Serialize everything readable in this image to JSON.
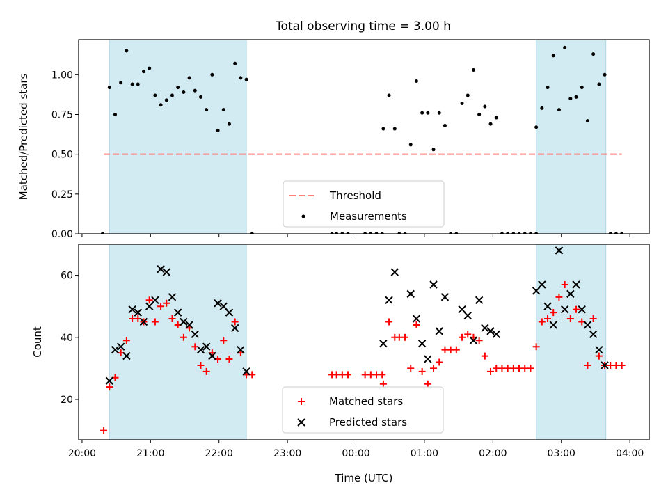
{
  "figure": {
    "title": "Total observing time = 3.00 h"
  },
  "colors": {
    "shade": "#add8e6",
    "threshold": "#ff7f7f",
    "matched": "#ff0000",
    "predicted": "#000000",
    "measurement": "#000000"
  },
  "chart_data": [
    {
      "type": "scatter",
      "title": "Total observing time = 3.00 h",
      "xlabel": "",
      "ylabel": "Matched/Predicted stars",
      "xlim": [
        "19:57",
        "04:17"
      ],
      "ylim": [
        0.0,
        1.22
      ],
      "x_ticks": [
        "20:00",
        "21:00",
        "22:00",
        "23:00",
        "00:00",
        "01:00",
        "02:00",
        "03:00",
        "04:00"
      ],
      "y_ticks": [
        "0.00",
        "0.25",
        "0.50",
        "0.75",
        "1.00"
      ],
      "shaded_intervals": [
        [
          "20:24",
          "22:24"
        ],
        [
          "02:38",
          "03:39"
        ]
      ],
      "threshold": {
        "name": "Threshold",
        "y": 0.5,
        "x_range": [
          "20:19",
          "03:53"
        ],
        "style": "dashed"
      },
      "legend": {
        "position": "lower center",
        "entries": [
          "Threshold",
          "Measurements"
        ]
      },
      "series": [
        {
          "name": "Measurements",
          "points": [
            [
              "20:18",
              0.0
            ],
            [
              "20:24",
              0.92
            ],
            [
              "20:29",
              0.75
            ],
            [
              "20:34",
              0.95
            ],
            [
              "20:39",
              1.15
            ],
            [
              "20:44",
              0.94
            ],
            [
              "20:49",
              0.94
            ],
            [
              "20:54",
              1.02
            ],
            [
              "20:59",
              1.04
            ],
            [
              "21:04",
              0.87
            ],
            [
              "21:09",
              0.81
            ],
            [
              "21:14",
              0.84
            ],
            [
              "21:19",
              0.87
            ],
            [
              "21:24",
              0.92
            ],
            [
              "21:29",
              0.89
            ],
            [
              "21:34",
              0.98
            ],
            [
              "21:39",
              0.9
            ],
            [
              "21:44",
              0.86
            ],
            [
              "21:49",
              0.78
            ],
            [
              "21:54",
              1.0
            ],
            [
              "21:59",
              0.65
            ],
            [
              "22:04",
              0.78
            ],
            [
              "22:09",
              0.69
            ],
            [
              "22:14",
              1.07
            ],
            [
              "22:19",
              0.98
            ],
            [
              "22:24",
              0.97
            ],
            [
              "22:29",
              0.0
            ],
            [
              "23:39",
              0.0
            ],
            [
              "23:43",
              0.0
            ],
            [
              "23:48",
              0.0
            ],
            [
              "23:53",
              0.0
            ],
            [
              "00:08",
              0.0
            ],
            [
              "00:13",
              0.0
            ],
            [
              "00:18",
              0.0
            ],
            [
              "00:23",
              0.0
            ],
            [
              "00:24",
              0.66
            ],
            [
              "00:29",
              0.87
            ],
            [
              "00:34",
              0.66
            ],
            [
              "00:38",
              0.0
            ],
            [
              "00:43",
              0.0
            ],
            [
              "00:48",
              0.56
            ],
            [
              "00:53",
              0.96
            ],
            [
              "00:58",
              0.76
            ],
            [
              "01:03",
              0.76
            ],
            [
              "01:08",
              0.53
            ],
            [
              "01:13",
              0.76
            ],
            [
              "01:18",
              0.68
            ],
            [
              "01:23",
              0.0
            ],
            [
              "01:28",
              0.0
            ],
            [
              "01:33",
              0.82
            ],
            [
              "01:38",
              0.87
            ],
            [
              "01:43",
              1.03
            ],
            [
              "01:48",
              0.75
            ],
            [
              "01:53",
              0.8
            ],
            [
              "01:58",
              0.69
            ],
            [
              "02:03",
              0.73
            ],
            [
              "02:08",
              0.0
            ],
            [
              "02:13",
              0.0
            ],
            [
              "02:18",
              0.0
            ],
            [
              "02:23",
              0.0
            ],
            [
              "02:28",
              0.0
            ],
            [
              "02:33",
              0.0
            ],
            [
              "02:38",
              0.0
            ],
            [
              "02:38",
              0.67
            ],
            [
              "02:43",
              0.79
            ],
            [
              "02:48",
              0.92
            ],
            [
              "02:53",
              1.12
            ],
            [
              "02:58",
              0.78
            ],
            [
              "03:03",
              1.17
            ],
            [
              "03:08",
              0.85
            ],
            [
              "03:13",
              0.86
            ],
            [
              "03:18",
              0.92
            ],
            [
              "03:23",
              0.71
            ],
            [
              "03:28",
              1.13
            ],
            [
              "03:33",
              0.94
            ],
            [
              "03:38",
              1.0
            ],
            [
              "03:43",
              0.0
            ],
            [
              "03:48",
              0.0
            ],
            [
              "03:53",
              0.0
            ]
          ]
        }
      ]
    },
    {
      "type": "scatter",
      "title": "",
      "xlabel": "Time (UTC)",
      "ylabel": "Count",
      "xlim": [
        "19:57",
        "04:17"
      ],
      "ylim": [
        7,
        70
      ],
      "x_ticks": [
        "20:00",
        "21:00",
        "22:00",
        "23:00",
        "00:00",
        "01:00",
        "02:00",
        "03:00",
        "04:00"
      ],
      "y_ticks": [
        "20",
        "40",
        "60"
      ],
      "shaded_intervals": [
        [
          "20:24",
          "22:24"
        ],
        [
          "02:38",
          "03:39"
        ]
      ],
      "legend": {
        "position": "lower center",
        "entries": [
          "Matched stars",
          "Predicted stars"
        ]
      },
      "series": [
        {
          "name": "Matched stars",
          "marker": "+",
          "points": [
            [
              "20:19",
              10
            ],
            [
              "20:24",
              24
            ],
            [
              "20:29",
              27
            ],
            [
              "20:34",
              35
            ],
            [
              "20:39",
              39
            ],
            [
              "20:44",
              46
            ],
            [
              "20:49",
              46
            ],
            [
              "20:54",
              45
            ],
            [
              "20:59",
              52
            ],
            [
              "21:04",
              45
            ],
            [
              "21:09",
              50
            ],
            [
              "21:14",
              51
            ],
            [
              "21:19",
              46
            ],
            [
              "21:24",
              44
            ],
            [
              "21:29",
              40
            ],
            [
              "21:34",
              43
            ],
            [
              "21:39",
              37
            ],
            [
              "21:44",
              31
            ],
            [
              "21:49",
              29
            ],
            [
              "21:54",
              35
            ],
            [
              "21:59",
              33
            ],
            [
              "22:04",
              39
            ],
            [
              "22:09",
              33
            ],
            [
              "22:14",
              45
            ],
            [
              "22:19",
              35
            ],
            [
              "22:24",
              28
            ],
            [
              "22:29",
              28
            ],
            [
              "23:39",
              28
            ],
            [
              "23:43",
              28
            ],
            [
              "23:48",
              28
            ],
            [
              "23:53",
              28
            ],
            [
              "00:08",
              28
            ],
            [
              "00:13",
              28
            ],
            [
              "00:18",
              28
            ],
            [
              "00:23",
              28
            ],
            [
              "00:24",
              25
            ],
            [
              "00:29",
              45
            ],
            [
              "00:34",
              40
            ],
            [
              "00:38",
              40
            ],
            [
              "00:43",
              40
            ],
            [
              "00:48",
              30
            ],
            [
              "00:53",
              44
            ],
            [
              "00:58",
              29
            ],
            [
              "01:03",
              25
            ],
            [
              "01:08",
              30
            ],
            [
              "01:13",
              32
            ],
            [
              "01:18",
              36
            ],
            [
              "01:23",
              36
            ],
            [
              "01:28",
              36
            ],
            [
              "01:33",
              40
            ],
            [
              "01:38",
              41
            ],
            [
              "01:43",
              40
            ],
            [
              "01:48",
              39
            ],
            [
              "01:53",
              34
            ],
            [
              "01:58",
              29
            ],
            [
              "02:03",
              30
            ],
            [
              "02:08",
              30
            ],
            [
              "02:13",
              30
            ],
            [
              "02:18",
              30
            ],
            [
              "02:23",
              30
            ],
            [
              "02:28",
              30
            ],
            [
              "02:33",
              30
            ],
            [
              "02:38",
              37
            ],
            [
              "02:43",
              45
            ],
            [
              "02:48",
              46
            ],
            [
              "02:53",
              48
            ],
            [
              "02:58",
              53
            ],
            [
              "03:03",
              57
            ],
            [
              "03:08",
              46
            ],
            [
              "03:13",
              49
            ],
            [
              "03:18",
              45
            ],
            [
              "03:23",
              31
            ],
            [
              "03:28",
              46
            ],
            [
              "03:33",
              34
            ],
            [
              "03:38",
              31
            ],
            [
              "03:43",
              31
            ],
            [
              "03:48",
              31
            ],
            [
              "03:53",
              31
            ]
          ]
        },
        {
          "name": "Predicted stars",
          "marker": "x",
          "points": [
            [
              "20:24",
              26
            ],
            [
              "20:29",
              36
            ],
            [
              "20:34",
              37
            ],
            [
              "20:39",
              34
            ],
            [
              "20:44",
              49
            ],
            [
              "20:49",
              48
            ],
            [
              "20:54",
              45
            ],
            [
              "20:59",
              50
            ],
            [
              "21:04",
              52
            ],
            [
              "21:09",
              62
            ],
            [
              "21:14",
              61
            ],
            [
              "21:19",
              53
            ],
            [
              "21:24",
              48
            ],
            [
              "21:29",
              45
            ],
            [
              "21:34",
              44
            ],
            [
              "21:39",
              41
            ],
            [
              "21:44",
              36
            ],
            [
              "21:49",
              37
            ],
            [
              "21:54",
              34
            ],
            [
              "21:59",
              51
            ],
            [
              "22:04",
              50
            ],
            [
              "22:09",
              48
            ],
            [
              "22:14",
              43
            ],
            [
              "22:19",
              36
            ],
            [
              "22:24",
              29
            ],
            [
              "00:24",
              38
            ],
            [
              "00:29",
              52
            ],
            [
              "00:34",
              61
            ],
            [
              "00:48",
              54
            ],
            [
              "00:53",
              46
            ],
            [
              "00:58",
              38
            ],
            [
              "01:03",
              33
            ],
            [
              "01:08",
              57
            ],
            [
              "01:13",
              42
            ],
            [
              "01:18",
              53
            ],
            [
              "01:33",
              49
            ],
            [
              "01:38",
              47
            ],
            [
              "01:43",
              39
            ],
            [
              "01:48",
              52
            ],
            [
              "01:53",
              43
            ],
            [
              "01:58",
              42
            ],
            [
              "02:03",
              41
            ],
            [
              "02:38",
              55
            ],
            [
              "02:43",
              57
            ],
            [
              "02:48",
              50
            ],
            [
              "02:53",
              44
            ],
            [
              "02:58",
              68
            ],
            [
              "03:03",
              49
            ],
            [
              "03:08",
              54
            ],
            [
              "03:13",
              57
            ],
            [
              "03:18",
              49
            ],
            [
              "03:23",
              44
            ],
            [
              "03:28",
              41
            ],
            [
              "03:33",
              36
            ],
            [
              "03:38",
              31
            ]
          ]
        }
      ]
    }
  ]
}
